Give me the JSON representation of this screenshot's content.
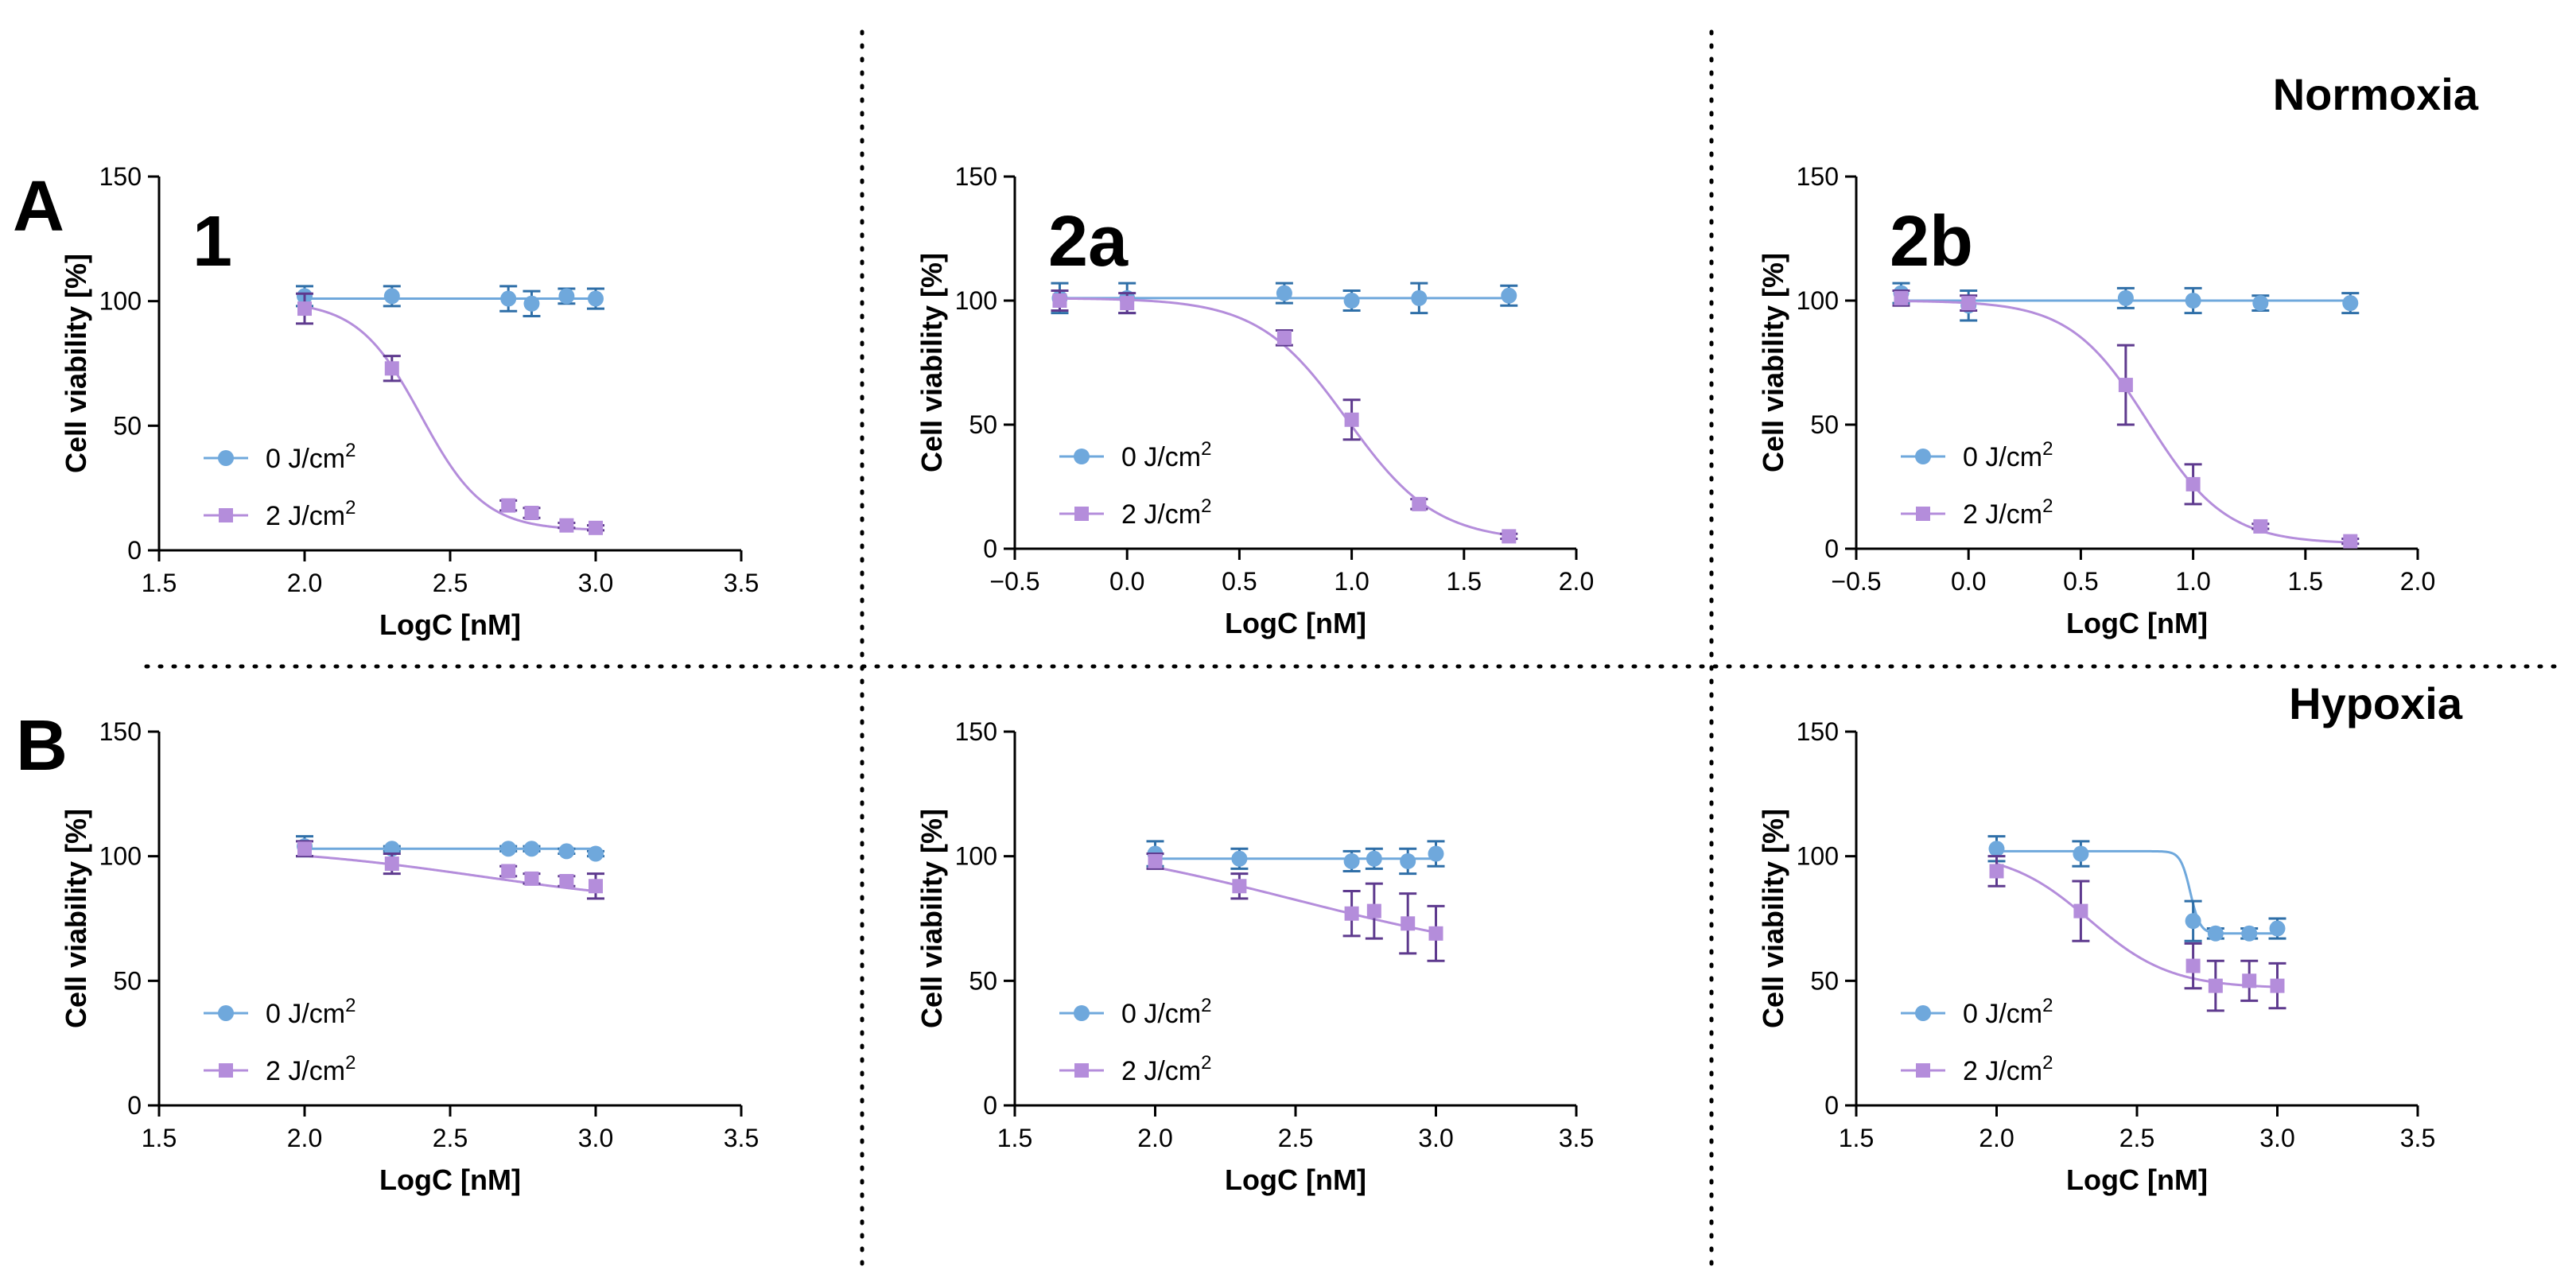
{
  "section_labels": {
    "A": "A",
    "B": "B"
  },
  "condition_titles": {
    "normoxia": "Normoxia",
    "hypoxia": "Hypoxia"
  },
  "colors": {
    "series_0": "#6FA8DC",
    "series_0_dark": "#2F6FA8",
    "series_2": "#B48DDB",
    "series_2_dark": "#5E3A8E",
    "axis": "#000000"
  },
  "chart_data": [
    {
      "id": "A1",
      "type": "line",
      "compound_label": "1",
      "xlabel": "LogC [nM]",
      "ylabel": "Cell viability [%]",
      "xlim": [
        1.5,
        3.5
      ],
      "xticks": [
        1.5,
        2.0,
        2.5,
        3.0,
        3.5
      ],
      "xtick_labels": [
        "1.5",
        "2.0",
        "2.5",
        "3.0",
        "3.5"
      ],
      "ylim": [
        0,
        150
      ],
      "yticks": [
        0,
        50,
        100,
        150
      ],
      "ytick_labels": [
        "0",
        "50",
        "100",
        "150"
      ],
      "legend_position": "lower-left",
      "series": [
        {
          "name": "0 J/cm2",
          "legend_text": "0 J/cm",
          "legend_sup": "2",
          "marker": "circle",
          "x": [
            2.0,
            2.3,
            2.7,
            2.78,
            2.9,
            3.0
          ],
          "values": [
            102,
            102,
            101,
            99,
            102,
            101
          ],
          "err": [
            4,
            4,
            5,
            5,
            3,
            4
          ],
          "fit": {
            "type": "flat",
            "top": 101,
            "bottom": 101,
            "logIC50": 2.5,
            "hill": -1
          }
        },
        {
          "name": "2 J/cm2",
          "legend_text": "2 J/cm",
          "legend_sup": "2",
          "marker": "square",
          "x": [
            2.0,
            2.3,
            2.7,
            2.78,
            2.9,
            3.0
          ],
          "values": [
            97,
            73,
            18,
            15,
            10,
            9
          ],
          "err": [
            6,
            5,
            2,
            2,
            1,
            1
          ],
          "fit": {
            "type": "sigmoid",
            "top": 100,
            "bottom": 8,
            "logIC50": 2.4,
            "hill": -4
          }
        }
      ]
    },
    {
      "id": "A2a",
      "type": "line",
      "compound_label": "2a",
      "xlabel": "LogC [nM]",
      "ylabel": "Cell viability [%]",
      "xlim": [
        -0.5,
        2.0
      ],
      "xticks": [
        -0.5,
        0.0,
        0.5,
        1.0,
        1.5,
        2.0
      ],
      "xtick_labels": [
        "−0.5",
        "0.0",
        "0.5",
        "1.0",
        "1.5",
        "2.0"
      ],
      "ylim": [
        0,
        150
      ],
      "yticks": [
        0,
        50,
        100,
        150
      ],
      "ytick_labels": [
        "0",
        "50",
        "100",
        "150"
      ],
      "legend_position": "lower-left",
      "series": [
        {
          "name": "0 J/cm2",
          "legend_text": "0 J/cm",
          "legend_sup": "2",
          "marker": "circle",
          "x": [
            -0.3,
            0.0,
            0.7,
            1.0,
            1.3,
            1.7
          ],
          "values": [
            101,
            101,
            103,
            100,
            101,
            102
          ],
          "err": [
            6,
            6,
            4,
            4,
            6,
            4
          ],
          "fit": {
            "type": "flat",
            "top": 101,
            "bottom": 101,
            "logIC50": 1.0,
            "hill": -1
          }
        },
        {
          "name": "2 J/cm2",
          "legend_text": "2 J/cm",
          "legend_sup": "2",
          "marker": "square",
          "x": [
            -0.3,
            0.0,
            0.7,
            1.0,
            1.3,
            1.7
          ],
          "values": [
            100,
            99,
            85,
            52,
            18,
            5
          ],
          "err": [
            4,
            4,
            3,
            8,
            2,
            1
          ],
          "fit": {
            "type": "sigmoid",
            "top": 101,
            "bottom": 3,
            "logIC50": 0.98,
            "hill": -2.2
          }
        }
      ]
    },
    {
      "id": "A2b",
      "type": "line",
      "compound_label": "2b",
      "xlabel": "LogC [nM]",
      "ylabel": "Cell viability [%]",
      "xlim": [
        -0.5,
        2.0
      ],
      "xticks": [
        -0.5,
        0.0,
        0.5,
        1.0,
        1.5,
        2.0
      ],
      "xtick_labels": [
        "−0.5",
        "0.0",
        "0.5",
        "1.0",
        "1.5",
        "2.0"
      ],
      "ylim": [
        0,
        150
      ],
      "yticks": [
        0,
        50,
        100,
        150
      ],
      "ytick_labels": [
        "0",
        "50",
        "100",
        "150"
      ],
      "legend_position": "lower-left",
      "series": [
        {
          "name": "0 J/cm2",
          "legend_text": "0 J/cm",
          "legend_sup": "2",
          "marker": "circle",
          "x": [
            -0.3,
            0.0,
            0.7,
            1.0,
            1.3,
            1.7
          ],
          "values": [
            103,
            98,
            101,
            100,
            99,
            99
          ],
          "err": [
            4,
            6,
            4,
            5,
            3,
            4
          ],
          "fit": {
            "type": "flat",
            "top": 100,
            "bottom": 100,
            "logIC50": 1.0,
            "hill": -1
          }
        },
        {
          "name": "2 J/cm2",
          "legend_text": "2 J/cm",
          "legend_sup": "2",
          "marker": "square",
          "x": [
            -0.3,
            0.0,
            0.7,
            1.0,
            1.3,
            1.7
          ],
          "values": [
            101,
            99,
            66,
            26,
            9,
            3
          ],
          "err": [
            3,
            3,
            16,
            8,
            1,
            1
          ],
          "fit": {
            "type": "sigmoid",
            "top": 100,
            "bottom": 2,
            "logIC50": 0.8,
            "hill": -2.5
          }
        }
      ]
    },
    {
      "id": "B1",
      "type": "line",
      "compound_label": "",
      "xlabel": "LogC [nM]",
      "ylabel": "Cell viability [%]",
      "xlim": [
        1.5,
        3.5
      ],
      "xticks": [
        1.5,
        2.0,
        2.5,
        3.0,
        3.5
      ],
      "xtick_labels": [
        "1.5",
        "2.0",
        "2.5",
        "3.0",
        "3.5"
      ],
      "ylim": [
        0,
        150
      ],
      "yticks": [
        0,
        50,
        100,
        150
      ],
      "ytick_labels": [
        "0",
        "50",
        "100",
        "150"
      ],
      "legend_position": "lower-left",
      "series": [
        {
          "name": "0 J/cm2",
          "legend_text": "0 J/cm",
          "legend_sup": "2",
          "marker": "circle",
          "x": [
            2.0,
            2.3,
            2.7,
            2.78,
            2.9,
            3.0
          ],
          "values": [
            104,
            103,
            103,
            103,
            102,
            101
          ],
          "err": [
            4,
            1,
            1,
            1,
            1,
            1
          ],
          "fit": {
            "type": "flat",
            "top": 103,
            "bottom": 103,
            "logIC50": 2.5,
            "hill": -1
          }
        },
        {
          "name": "2 J/cm2",
          "legend_text": "2 J/cm",
          "legend_sup": "2",
          "marker": "square",
          "x": [
            2.0,
            2.3,
            2.7,
            2.78,
            2.9,
            3.0
          ],
          "values": [
            103,
            97,
            94,
            91,
            90,
            88
          ],
          "err": [
            3,
            4,
            2,
            2,
            2,
            5
          ],
          "fit": {
            "type": "sigmoid",
            "top": 104,
            "bottom": 80,
            "logIC50": 2.6,
            "hill": -1.2
          }
        }
      ]
    },
    {
      "id": "B2a",
      "type": "line",
      "compound_label": "",
      "xlabel": "LogC [nM]",
      "ylabel": "Cell viability [%]",
      "xlim": [
        1.5,
        3.5
      ],
      "xticks": [
        1.5,
        2.0,
        2.5,
        3.0,
        3.5
      ],
      "xtick_labels": [
        "1.5",
        "2.0",
        "2.5",
        "3.0",
        "3.5"
      ],
      "ylim": [
        0,
        150
      ],
      "yticks": [
        0,
        50,
        100,
        150
      ],
      "ytick_labels": [
        "0",
        "50",
        "100",
        "150"
      ],
      "legend_position": "lower-left",
      "series": [
        {
          "name": "0 J/cm2",
          "legend_text": "0 J/cm",
          "legend_sup": "2",
          "marker": "circle",
          "x": [
            2.0,
            2.3,
            2.7,
            2.78,
            2.9,
            3.0
          ],
          "values": [
            101,
            99,
            98,
            99,
            98,
            101
          ],
          "err": [
            5,
            4,
            4,
            4,
            5,
            5
          ],
          "fit": {
            "type": "flat",
            "top": 99,
            "bottom": 99,
            "logIC50": 2.5,
            "hill": -1
          }
        },
        {
          "name": "2 J/cm2",
          "legend_text": "2 J/cm",
          "legend_sup": "2",
          "marker": "square",
          "x": [
            2.0,
            2.3,
            2.7,
            2.78,
            2.9,
            3.0
          ],
          "values": [
            98,
            88,
            77,
            78,
            73,
            69
          ],
          "err": [
            3,
            5,
            9,
            11,
            12,
            11
          ],
          "fit": {
            "type": "sigmoid",
            "top": 110,
            "bottom": 55,
            "logIC50": 2.5,
            "hill": -0.9
          }
        }
      ]
    },
    {
      "id": "B2b",
      "type": "line",
      "compound_label": "",
      "xlabel": "LogC [nM]",
      "ylabel": "Cell viability [%]",
      "xlim": [
        1.5,
        3.5
      ],
      "xticks": [
        1.5,
        2.0,
        2.5,
        3.0,
        3.5
      ],
      "xtick_labels": [
        "1.5",
        "2.0",
        "2.5",
        "3.0",
        "3.5"
      ],
      "ylim": [
        0,
        150
      ],
      "yticks": [
        0,
        50,
        100,
        150
      ],
      "ytick_labels": [
        "0",
        "50",
        "100",
        "150"
      ],
      "legend_position": "lower-left",
      "series": [
        {
          "name": "0 J/cm2",
          "legend_text": "0 J/cm",
          "legend_sup": "2",
          "marker": "circle",
          "x": [
            2.0,
            2.3,
            2.7,
            2.78,
            2.9,
            3.0
          ],
          "values": [
            103,
            101,
            74,
            69,
            69,
            71
          ],
          "err": [
            5,
            5,
            8,
            2,
            2,
            4
          ],
          "fit": {
            "type": "sigmoid",
            "top": 102,
            "bottom": 69,
            "logIC50": 2.69,
            "hill": -25
          }
        },
        {
          "name": "2 J/cm2",
          "legend_text": "2 J/cm",
          "legend_sup": "2",
          "marker": "square",
          "x": [
            2.0,
            2.3,
            2.7,
            2.78,
            2.9,
            3.0
          ],
          "values": [
            94,
            78,
            56,
            48,
            50,
            48
          ],
          "err": [
            6,
            12,
            9,
            10,
            8,
            9
          ],
          "fit": {
            "type": "sigmoid",
            "top": 102,
            "bottom": 47,
            "logIC50": 2.33,
            "hill": -3
          }
        }
      ]
    }
  ]
}
